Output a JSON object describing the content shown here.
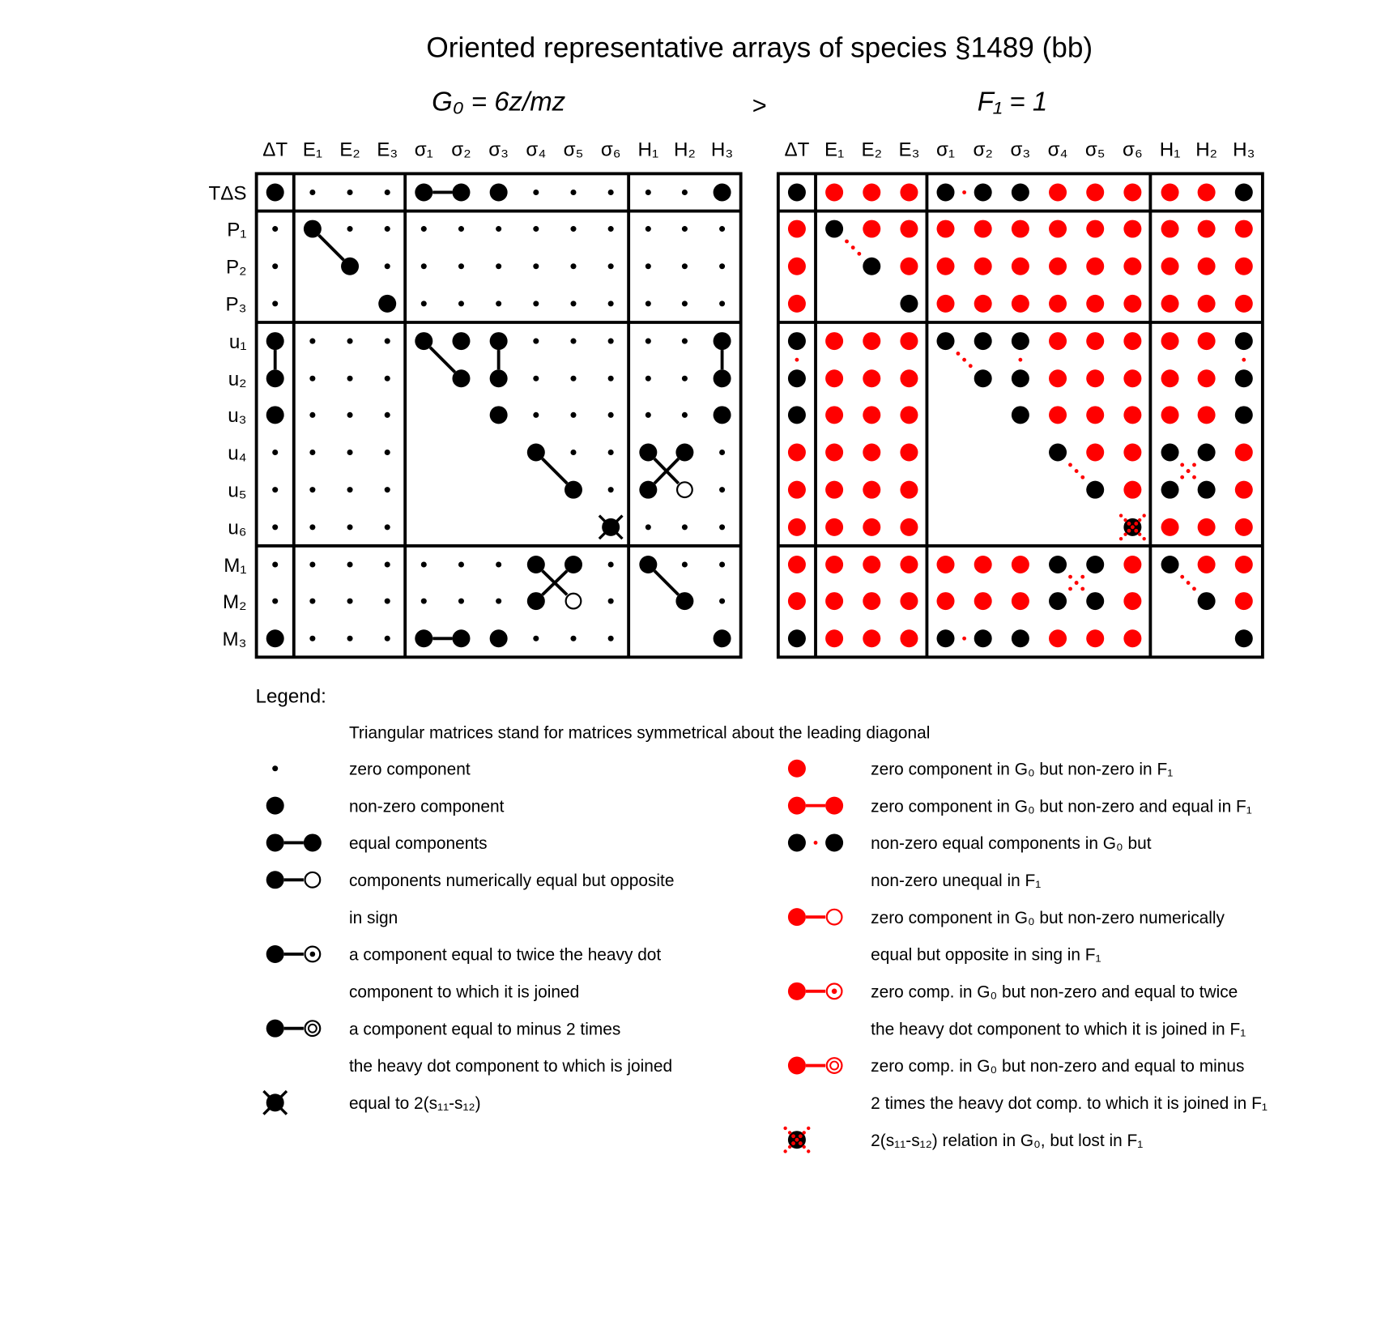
{
  "title": "Oriented representative arrays of species §1489 (bb)",
  "left_heading": "G₀ = 6z/mz",
  "relation": ">",
  "right_heading": "F₁ = 1",
  "colors": {
    "black": "#000000",
    "red": "#ff0000"
  },
  "column_labels": [
    "ΔT",
    "E₁",
    "E₂",
    "E₃",
    "σ₁",
    "σ₂",
    "σ₃",
    "σ₄",
    "σ₅",
    "σ₆",
    "H₁",
    "H₂",
    "H₃"
  ],
  "row_labels": [
    "TΔS",
    "P₁",
    "P₂",
    "P₃",
    "u₁",
    "u₂",
    "u₃",
    "u₄",
    "u₅",
    "u₆",
    "M₁",
    "M₂",
    "M₃"
  ],
  "matrices": [
    {
      "cells": [
        [
          "o",
          ".",
          ".",
          ".",
          "o",
          "o",
          "o",
          ".",
          ".",
          ".",
          ".",
          ".",
          "o"
        ],
        [
          ".",
          "o",
          ".",
          ".",
          ".",
          ".",
          ".",
          ".",
          ".",
          ".",
          ".",
          ".",
          "."
        ],
        [
          ".",
          "-",
          "o",
          ".",
          ".",
          ".",
          ".",
          ".",
          ".",
          ".",
          ".",
          ".",
          "."
        ],
        [
          ".",
          "-",
          "-",
          "o",
          ".",
          ".",
          ".",
          ".",
          ".",
          ".",
          ".",
          ".",
          "."
        ],
        [
          "o",
          ".",
          ".",
          ".",
          "o",
          "o",
          "o",
          ".",
          ".",
          ".",
          ".",
          ".",
          "o"
        ],
        [
          "o",
          ".",
          ".",
          ".",
          "-",
          "o",
          "o",
          ".",
          ".",
          ".",
          ".",
          ".",
          "o"
        ],
        [
          "o",
          ".",
          ".",
          ".",
          "-",
          "-",
          "o",
          ".",
          ".",
          ".",
          ".",
          ".",
          "o"
        ],
        [
          ".",
          ".",
          ".",
          ".",
          "-",
          "-",
          "-",
          "o",
          ".",
          ".",
          "o",
          "o",
          "."
        ],
        [
          ".",
          ".",
          ".",
          ".",
          "-",
          "-",
          "-",
          "-",
          "o",
          ".",
          "o",
          "w",
          "."
        ],
        [
          ".",
          ".",
          ".",
          ".",
          "-",
          "-",
          "-",
          "-",
          "-",
          "x",
          ".",
          ".",
          "."
        ],
        [
          ".",
          ".",
          ".",
          ".",
          ".",
          ".",
          ".",
          "o",
          "o",
          ".",
          "o",
          ".",
          "."
        ],
        [
          ".",
          ".",
          ".",
          ".",
          ".",
          ".",
          ".",
          "o",
          "w",
          ".",
          "-",
          "o",
          "."
        ],
        [
          "o",
          ".",
          ".",
          ".",
          "o",
          "o",
          "o",
          ".",
          ".",
          ".",
          "-",
          "-",
          "o"
        ]
      ],
      "links": [
        [
          0,
          4,
          0,
          5
        ],
        [
          1,
          1,
          2,
          2
        ],
        [
          4,
          0,
          5,
          0
        ],
        [
          4,
          4,
          5,
          5
        ],
        [
          4,
          6,
          5,
          6
        ],
        [
          4,
          12,
          5,
          12
        ],
        [
          7,
          7,
          8,
          8
        ],
        [
          7,
          10,
          8,
          11
        ],
        [
          7,
          11,
          8,
          10
        ],
        [
          10,
          7,
          11,
          8
        ],
        [
          10,
          8,
          11,
          7
        ],
        [
          10,
          10,
          11,
          11
        ],
        [
          12,
          4,
          12,
          5
        ]
      ],
      "link_style": "solid-black"
    },
    {
      "cells": [
        [
          "k",
          "r",
          "r",
          "r",
          "k",
          "k",
          "k",
          "r",
          "r",
          "r",
          "r",
          "r",
          "k"
        ],
        [
          "r",
          "k",
          "r",
          "r",
          "r",
          "r",
          "r",
          "r",
          "r",
          "r",
          "r",
          "r",
          "r"
        ],
        [
          "r",
          "-",
          "k",
          "r",
          "r",
          "r",
          "r",
          "r",
          "r",
          "r",
          "r",
          "r",
          "r"
        ],
        [
          "r",
          "-",
          "-",
          "k",
          "r",
          "r",
          "r",
          "r",
          "r",
          "r",
          "r",
          "r",
          "r"
        ],
        [
          "k",
          "r",
          "r",
          "r",
          "k",
          "k",
          "k",
          "r",
          "r",
          "r",
          "r",
          "r",
          "k"
        ],
        [
          "k",
          "r",
          "r",
          "r",
          "-",
          "k",
          "k",
          "r",
          "r",
          "r",
          "r",
          "r",
          "k"
        ],
        [
          "k",
          "r",
          "r",
          "r",
          "-",
          "-",
          "k",
          "r",
          "r",
          "r",
          "r",
          "r",
          "k"
        ],
        [
          "r",
          "r",
          "r",
          "r",
          "-",
          "-",
          "-",
          "k",
          "r",
          "r",
          "k",
          "k",
          "r"
        ],
        [
          "r",
          "r",
          "r",
          "r",
          "-",
          "-",
          "-",
          "-",
          "k",
          "r",
          "k",
          "k",
          "r"
        ],
        [
          "r",
          "r",
          "r",
          "r",
          "-",
          "-",
          "-",
          "-",
          "-",
          "X",
          "r",
          "r",
          "r"
        ],
        [
          "r",
          "r",
          "r",
          "r",
          "r",
          "r",
          "r",
          "k",
          "k",
          "r",
          "k",
          "r",
          "r"
        ],
        [
          "r",
          "r",
          "r",
          "r",
          "r",
          "r",
          "r",
          "k",
          "k",
          "r",
          "-",
          "k",
          "r"
        ],
        [
          "k",
          "r",
          "r",
          "r",
          "k",
          "k",
          "k",
          "r",
          "r",
          "r",
          "-",
          "-",
          "k"
        ]
      ],
      "links": [
        [
          0,
          4,
          0,
          5
        ],
        [
          1,
          1,
          2,
          2
        ],
        [
          4,
          0,
          5,
          0
        ],
        [
          4,
          4,
          5,
          5
        ],
        [
          4,
          6,
          5,
          6
        ],
        [
          4,
          12,
          5,
          12
        ],
        [
          7,
          7,
          8,
          8
        ],
        [
          7,
          10,
          8,
          11
        ],
        [
          7,
          11,
          8,
          10
        ],
        [
          10,
          7,
          11,
          8
        ],
        [
          10,
          8,
          11,
          7
        ],
        [
          10,
          10,
          11,
          11
        ],
        [
          12,
          4,
          12,
          5
        ]
      ],
      "link_style": "dotted-red"
    }
  ],
  "legend": {
    "heading": "Legend:",
    "note": "Triangular matrices stand for matrices symmetrical about the leading diagonal",
    "left": [
      {
        "symbol": "small-dot",
        "lines": [
          "zero component"
        ]
      },
      {
        "symbol": "big-dot",
        "lines": [
          "non-zero component"
        ]
      },
      {
        "symbol": "pair-equal",
        "lines": [
          "equal components"
        ]
      },
      {
        "symbol": "pair-opposite",
        "lines": [
          "components numerically equal but opposite",
          "in sign"
        ]
      },
      {
        "symbol": "pair-twice",
        "lines": [
          "a component equal to twice the heavy dot",
          "component to which it is joined"
        ]
      },
      {
        "symbol": "pair-minus2",
        "lines": [
          "a component equal to minus 2 times",
          "the heavy dot component to which is joined"
        ]
      },
      {
        "symbol": "crossed-dot",
        "lines": [
          "equal to 2(s₁₁-s₁₂)"
        ]
      }
    ],
    "right": [
      {
        "symbol": "red-dot",
        "lines": [
          "zero component in G₀ but non-zero in F₁"
        ]
      },
      {
        "symbol": "red-pair-equal",
        "lines": [
          "zero component in G₀ but non-zero and equal in F₁"
        ]
      },
      {
        "symbol": "black-dotted-pair",
        "lines": [
          "non-zero equal components in G₀ but",
          "non-zero unequal in F₁"
        ]
      },
      {
        "symbol": "red-pair-opposite",
        "lines": [
          "zero component in G₀ but non-zero numerically",
          "equal but opposite in sing in F₁"
        ]
      },
      {
        "symbol": "red-pair-twice",
        "lines": [
          "zero comp. in G₀ but non-zero and equal to twice",
          "the heavy dot component to which it is joined in F₁"
        ]
      },
      {
        "symbol": "red-pair-minus2",
        "lines": [
          "zero comp. in G₀ but non-zero and equal to minus",
          "2 times the heavy dot comp. to which it is joined in F₁"
        ]
      },
      {
        "symbol": "crossed-red-dot",
        "lines": [
          "2(s₁₁-s₁₂) relation in G₀, but lost in F₁"
        ]
      }
    ]
  }
}
